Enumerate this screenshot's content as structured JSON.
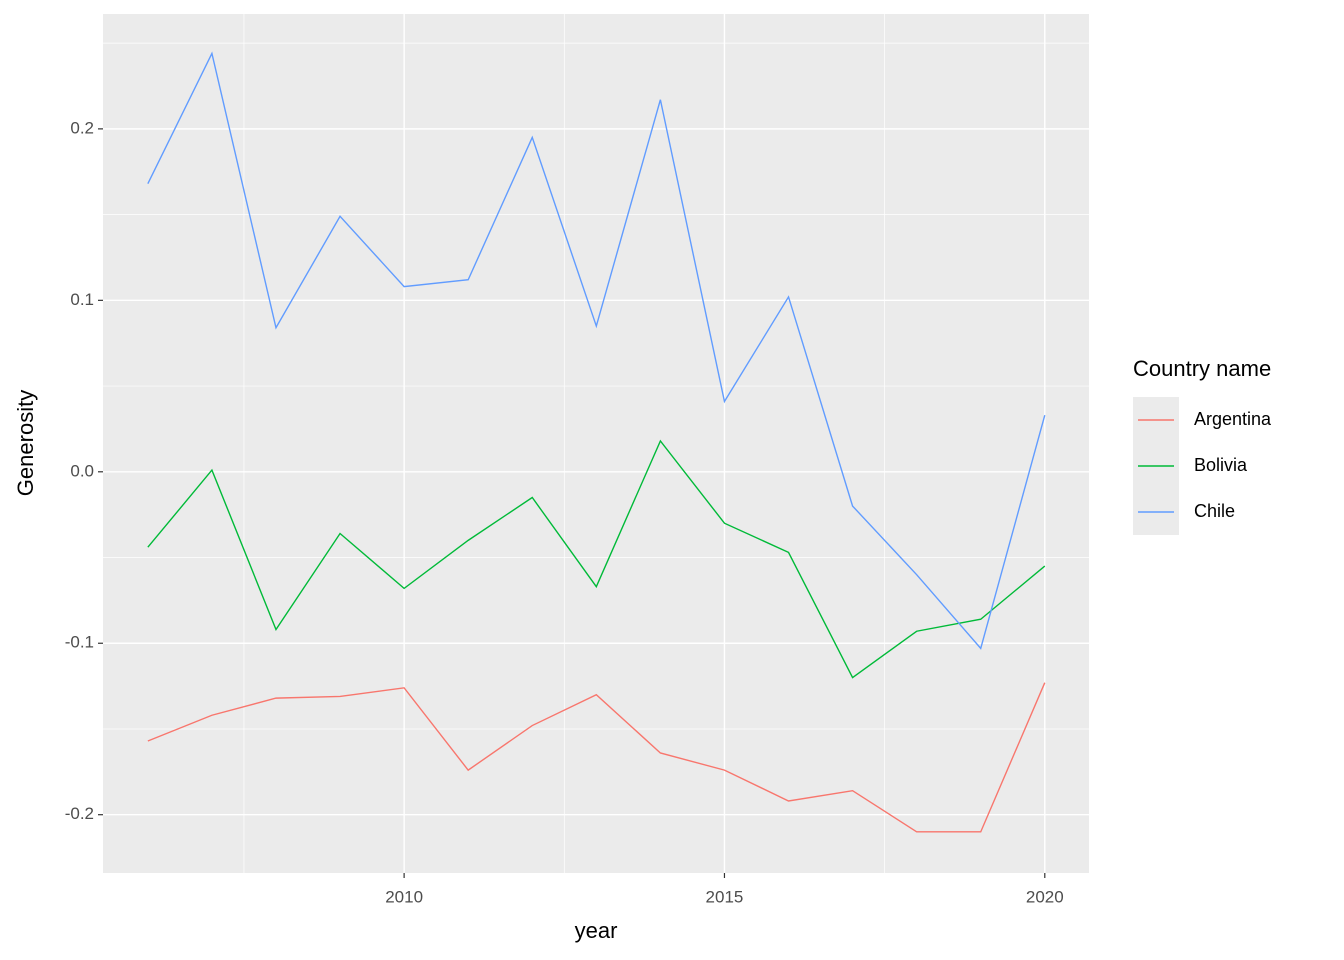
{
  "chart_data": {
    "type": "line",
    "x_label": "year",
    "y_label": "Generosity",
    "legend_title": "Country name",
    "x": [
      2006,
      2007,
      2008,
      2009,
      2010,
      2011,
      2012,
      2013,
      2014,
      2015,
      2016,
      2017,
      2018,
      2019,
      2020
    ],
    "series": [
      {
        "name": "Argentina",
        "color": "#F8766D",
        "values": [
          -0.157,
          -0.142,
          -0.132,
          -0.131,
          -0.126,
          -0.174,
          -0.148,
          -0.13,
          -0.164,
          -0.174,
          -0.192,
          -0.186,
          -0.21,
          -0.21,
          -0.123
        ]
      },
      {
        "name": "Bolivia",
        "color": "#00BA38",
        "values": [
          -0.044,
          0.001,
          -0.092,
          -0.036,
          -0.068,
          -0.04,
          -0.015,
          -0.067,
          0.018,
          -0.03,
          -0.047,
          -0.12,
          -0.093,
          -0.086,
          -0.055
        ]
      },
      {
        "name": "Chile",
        "color": "#619CFF",
        "values": [
          0.168,
          0.244,
          0.084,
          0.149,
          0.108,
          0.112,
          0.195,
          0.085,
          0.217,
          0.041,
          0.102,
          -0.02,
          -0.06,
          -0.103,
          0.033
        ]
      }
    ],
    "xlim": [
      2005.3,
      2020.69
    ],
    "xticks": [
      2010,
      2015,
      2020
    ],
    "ylim": [
      -0.234,
      0.267
    ],
    "yticks": [
      -0.2,
      -0.1,
      {
        "value": 0,
        "label": "0.0"
      },
      0.1,
      0.2
    ],
    "grid": true,
    "legend": "right"
  }
}
